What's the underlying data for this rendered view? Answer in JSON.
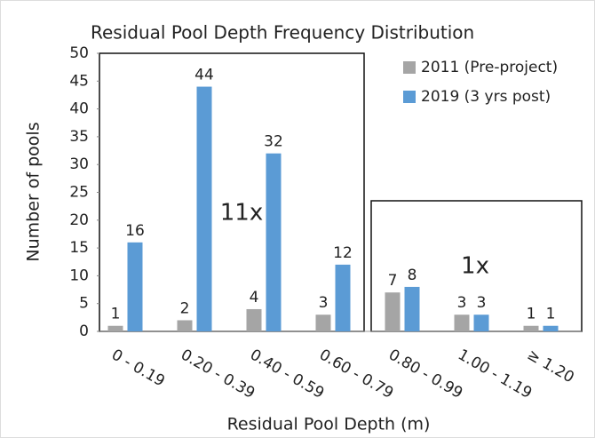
{
  "chart_data": {
    "type": "bar",
    "title": "Residual Pool Depth Frequency Distribution",
    "x_label": "Residual Pool Depth (m)",
    "y_label": "Number of pools",
    "categories": [
      "0 - 0.19",
      "0.20 - 0.39",
      "0.40 - 0.59",
      "0.60 - 0.79",
      "0.80 - 0.99",
      "1.00 - 1.19",
      "≥ 1.20"
    ],
    "series": [
      {
        "name": "2011 (Pre-project)",
        "color": "#a5a5a5",
        "values": [
          1,
          2,
          4,
          3,
          7,
          3,
          1
        ]
      },
      {
        "name": "2019 (3 yrs post)",
        "color": "#5b9bd5",
        "values": [
          16,
          44,
          32,
          12,
          8,
          3,
          1
        ]
      }
    ],
    "annotations": [
      "11x",
      "1x"
    ],
    "ylim": [
      0,
      50
    ],
    "yticks": [
      0,
      5,
      10,
      15,
      20,
      25,
      30,
      35,
      40,
      45,
      50
    ],
    "grid": false,
    "legend": "upper right"
  }
}
